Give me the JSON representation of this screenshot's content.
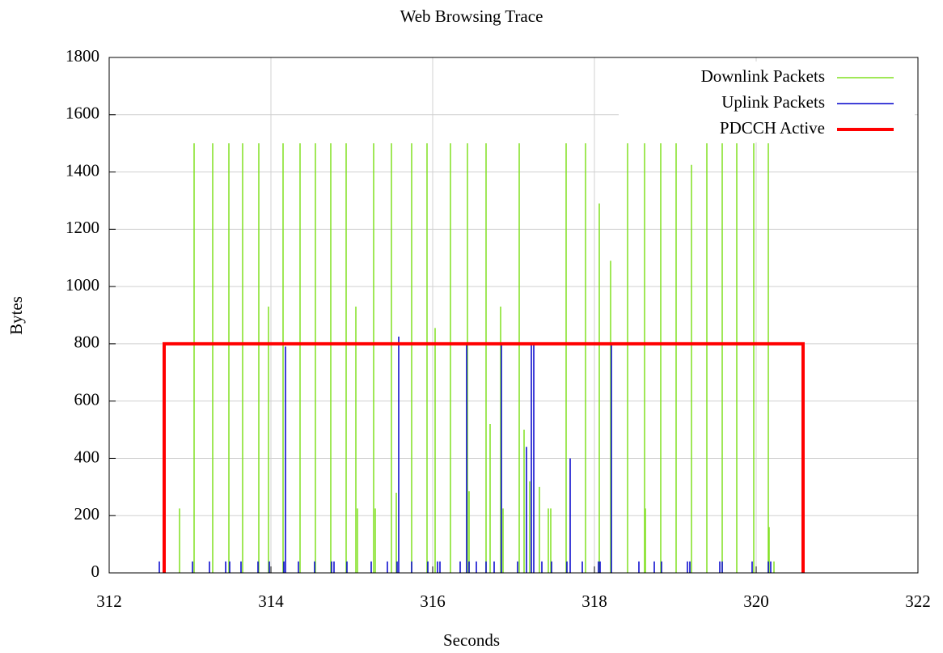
{
  "chart_data": {
    "type": "impulse",
    "title": "Web Browsing Trace",
    "xlabel": "Seconds",
    "ylabel": "Bytes",
    "xlim": [
      312,
      322
    ],
    "xticks": [
      312,
      314,
      316,
      318,
      320,
      322
    ],
    "ylim": [
      0,
      1800
    ],
    "yticks": [
      0,
      200,
      400,
      600,
      800,
      1000,
      1200,
      1400,
      1600,
      1800
    ],
    "grid": true,
    "legend": "top-right",
    "series": [
      {
        "name": "Downlink Packets",
        "color": "#80e020",
        "style": "impulses",
        "x": [
          313.05,
          313.28,
          313.48,
          313.65,
          313.85,
          314.15,
          314.36,
          314.55,
          314.74,
          314.93,
          315.27,
          315.49,
          315.74,
          315.93,
          316.22,
          316.43,
          316.66,
          317.07,
          317.65,
          317.89,
          318.41,
          318.62,
          318.82,
          319.01,
          319.39,
          319.58,
          319.76,
          319.97,
          320.15,
          312.87,
          313.97,
          315.05,
          315.07,
          315.29,
          315.55,
          316.03,
          316.45,
          316.71,
          316.84,
          316.87,
          317.13,
          317.2,
          317.32,
          317.43,
          317.46,
          318.06,
          318.2,
          318.63,
          319.2,
          320.16,
          320.22
        ],
        "values": [
          1500,
          1500,
          1500,
          1500,
          1500,
          1500,
          1500,
          1500,
          1500,
          1500,
          1500,
          1500,
          1500,
          1500,
          1500,
          1500,
          1500,
          1500,
          1500,
          1500,
          1500,
          1500,
          1500,
          1500,
          1500,
          1500,
          1500,
          1500,
          1500,
          225,
          930,
          930,
          225,
          225,
          280,
          855,
          285,
          520,
          930,
          225,
          500,
          320,
          300,
          225,
          225,
          1290,
          1090,
          225,
          1425,
          160,
          40
        ]
      },
      {
        "name": "Uplink Packets",
        "color": "#0000cc",
        "style": "impulses",
        "x": [
          314.18,
          315.58,
          316.42,
          316.85,
          317.16,
          317.22,
          317.25,
          317.7,
          318.21,
          312.62,
          313.03,
          313.24,
          313.44,
          313.49,
          313.63,
          313.84,
          313.98,
          314.16,
          314.34,
          314.54,
          314.75,
          314.78,
          314.94,
          315.24,
          315.44,
          315.56,
          315.74,
          315.94,
          316.06,
          316.09,
          316.34,
          316.45,
          316.54,
          316.66,
          316.76,
          317.05,
          317.35,
          317.47,
          317.66,
          317.85,
          318.05,
          318.07,
          318.55,
          318.74,
          318.83,
          319.15,
          319.18,
          319.55,
          319.58,
          319.95,
          320.15,
          320.18
        ],
        "values": [
          790,
          825,
          800,
          800,
          440,
          800,
          800,
          400,
          800,
          40,
          40,
          40,
          40,
          40,
          40,
          40,
          40,
          40,
          40,
          40,
          40,
          40,
          40,
          40,
          40,
          40,
          40,
          40,
          40,
          40,
          40,
          40,
          40,
          40,
          40,
          40,
          40,
          40,
          40,
          40,
          40,
          40,
          40,
          40,
          40,
          40,
          40,
          40,
          40,
          40,
          40,
          40
        ]
      },
      {
        "name": "PDCCH Active",
        "color": "#ff0000",
        "style": "line",
        "x": [
          312.68,
          312.68,
          320.58,
          320.58
        ],
        "values": [
          0,
          800,
          800,
          0
        ]
      }
    ]
  }
}
